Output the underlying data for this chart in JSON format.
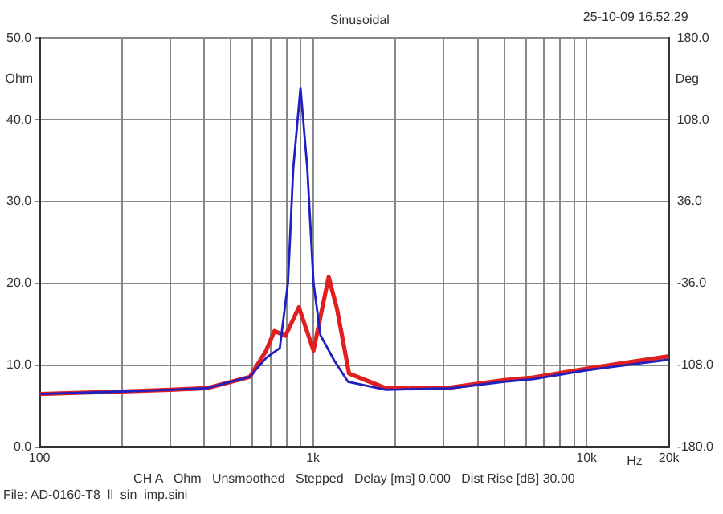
{
  "chart_data": {
    "type": "line",
    "title": "Sinusoidal",
    "xlabel": "Hz",
    "ylabel": "Ohm",
    "y2label": "Deg",
    "annotations": [
      "25-10-09 16.52.29",
      "CH A   Ohm   Unsmoothed   Stepped   Delay [ms] 0.000   Dist Rise [dB] 30.00",
      "File: AD-0160-T8  ll  sin  imp.sini"
    ],
    "series": [
      {
        "color": "#e02020",
        "x": [
          100,
          200,
          300,
          408,
          588,
          674,
          723,
          793,
          888,
          1004,
          1141,
          1224,
          1354,
          1609,
          1849,
          3206,
          5000,
          6380,
          10000,
          20000
        ],
        "values": [
          6.5,
          6.8,
          7.0,
          7.2,
          8.6,
          11.8,
          14.2,
          13.6,
          17.1,
          11.8,
          20.8,
          16.9,
          9.0,
          8.0,
          7.2,
          7.3,
          8.2,
          8.5,
          9.6,
          11.1
        ]
      },
      {
        "color": "#2020c0",
        "x": [
          100,
          200,
          300,
          408,
          588,
          674,
          756,
          810,
          847,
          900,
          953,
          1004,
          1064,
          1195,
          1342,
          1849,
          3206,
          5000,
          6380,
          10000,
          20000
        ],
        "values": [
          6.5,
          6.8,
          7.0,
          7.2,
          8.6,
          10.9,
          12.1,
          20.1,
          34.1,
          43.9,
          34.1,
          20.1,
          13.7,
          10.6,
          8.0,
          7.0,
          7.2,
          8.0,
          8.3,
          9.4,
          10.7
        ]
      }
    ],
    "xlim": [
      100,
      20000
    ],
    "log": "x",
    "xticks": [
      {
        "value": 100,
        "label": "100"
      },
      {
        "value": 200,
        "label": null
      },
      {
        "value": 300,
        "label": null
      },
      {
        "value": 400,
        "label": null
      },
      {
        "value": 500,
        "label": null
      },
      {
        "value": 600,
        "label": null
      },
      {
        "value": 700,
        "label": null
      },
      {
        "value": 800,
        "label": null
      },
      {
        "value": 900,
        "label": null
      },
      {
        "value": 1000,
        "label": "1k"
      },
      {
        "value": 2000,
        "label": null
      },
      {
        "value": 3000,
        "label": null
      },
      {
        "value": 4000,
        "label": null
      },
      {
        "value": 5000,
        "label": null
      },
      {
        "value": 6000,
        "label": null
      },
      {
        "value": 7000,
        "label": null
      },
      {
        "value": 8000,
        "label": null
      },
      {
        "value": 9000,
        "label": null
      },
      {
        "value": 10000,
        "label": "10k"
      },
      {
        "value": 20000,
        "label": "20k"
      }
    ],
    "ylim": [
      0,
      50
    ],
    "yticks": [
      {
        "value": 0,
        "label": "0.0"
      },
      {
        "value": 10,
        "label": "10.0"
      },
      {
        "value": 20,
        "label": "20.0"
      },
      {
        "value": 30,
        "label": "30.0"
      },
      {
        "value": 40,
        "label": "40.0"
      },
      {
        "value": 50,
        "label": "50.0"
      }
    ],
    "y2lim": [
      -180,
      180
    ],
    "y2ticks": [
      {
        "value": -180,
        "label": "-180.0"
      },
      {
        "value": -108,
        "label": "-108.0"
      },
      {
        "value": -36,
        "label": "-36.0"
      },
      {
        "value": 36,
        "label": "36.0"
      },
      {
        "value": 108,
        "label": "108.0"
      },
      {
        "value": 180,
        "label": "180.0"
      }
    ],
    "grid": true,
    "marker": "none",
    "line_style": "solid"
  }
}
